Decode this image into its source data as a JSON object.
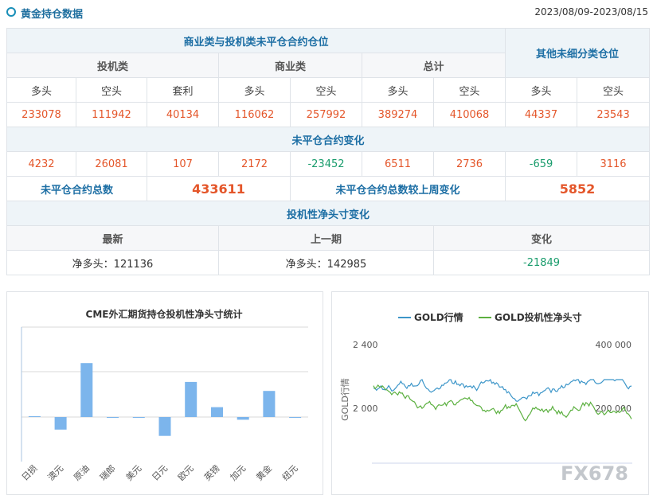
{
  "header": {
    "title": "黄金持仓数据",
    "date_range": "2023/08/09-2023/08/15"
  },
  "table": {
    "group_main": "商业类与投机类未平仓合约仓位",
    "group_other": "其他未细分类仓位",
    "cat_spec": "投机类",
    "cat_comm": "商业类",
    "cat_total": "总计",
    "labels": {
      "long": "多头",
      "short": "空头",
      "spread": "套利"
    },
    "positions": [
      "233078",
      "111942",
      "40134",
      "116062",
      "257992",
      "389274",
      "410068",
      "44337",
      "23543"
    ],
    "change_title": "未平仓合约变化",
    "changes": [
      "4232",
      "26081",
      "107",
      "2172",
      "-23452",
      "6511",
      "2736",
      "-659",
      "3116"
    ],
    "total_label": "未平仓合约总数",
    "total_value": "433611",
    "total_change_label": "未平仓合约总数较上周变化",
    "total_change_value": "5852",
    "net_title": "投机性净头寸变化",
    "net_headers": [
      "最新",
      "上一期",
      "变化"
    ],
    "net_values": [
      "净多头：121136",
      "净多头：142985",
      "-21849"
    ]
  },
  "chart_data": [
    {
      "type": "bar",
      "title": "CME外汇期货持仓投机性净头寸统计",
      "categories": [
        "日损",
        "澳元",
        "原油",
        "瑞郎",
        "美元",
        "日元",
        "欧元",
        "英镑",
        "加元",
        "黄金",
        "纽元"
      ],
      "values": [
        1,
        -14,
        60,
        -0.5,
        -0.5,
        -21,
        39,
        11,
        -3,
        29,
        -0.5
      ],
      "bar_color": "#7cb5ec"
    },
    {
      "type": "line",
      "legend": [
        "GOLD行情",
        "GOLD投机性净头寸"
      ],
      "series_colors": [
        "#3d96c9",
        "#5cb040"
      ],
      "left_axis_ticks": [
        "2 400",
        "2 000"
      ],
      "right_axis_ticks": [
        "400 000",
        "200 000"
      ],
      "left_axis_label": "GOLD行情",
      "watermark": "FX678"
    }
  ]
}
